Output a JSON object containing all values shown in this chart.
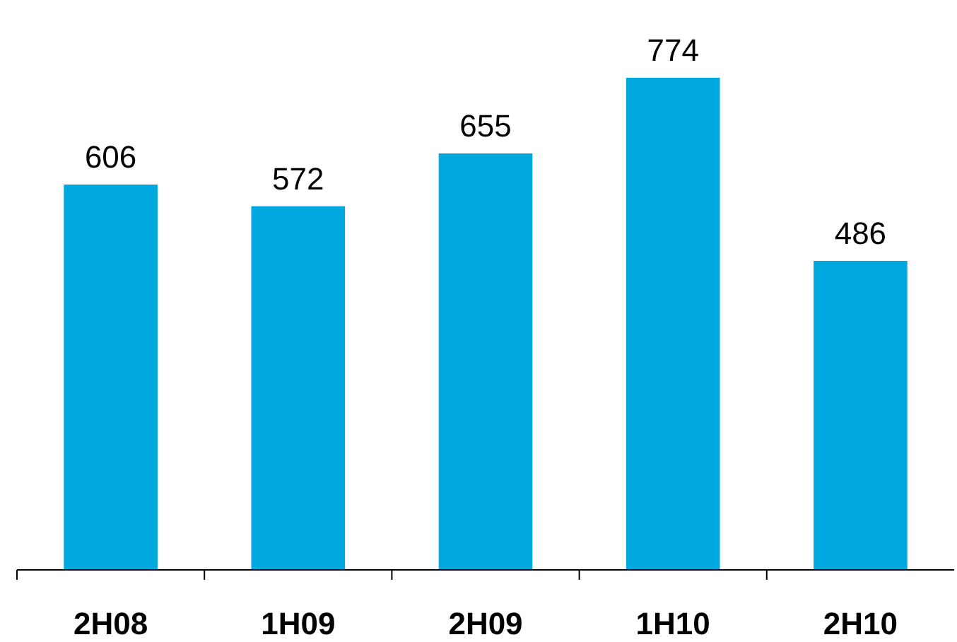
{
  "chart_data": {
    "type": "bar",
    "categories": [
      "2H08",
      "1H09",
      "2H09",
      "1H10",
      "2H10"
    ],
    "values": [
      606,
      572,
      655,
      774,
      486
    ],
    "color": "#00a8e0",
    "data_labels": true
  }
}
